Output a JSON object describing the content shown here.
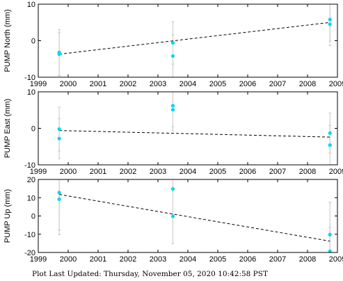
{
  "footer": "Plot Last Updated:   Thursday, November 05, 2020 10:42:58 PST",
  "colors": {
    "point": "#00d8ee",
    "errorbar": "#c8c8c8",
    "trend": "#000000",
    "frame": "#000000"
  },
  "chart_data": [
    {
      "type": "scatter",
      "ylabel": "PUMP North (mm)",
      "xlim": [
        1999,
        2009
      ],
      "ylim": [
        -10,
        10
      ],
      "xticks": [
        1999,
        2000,
        2001,
        2002,
        2003,
        2004,
        2005,
        2006,
        2007,
        2008,
        2009
      ],
      "yticks": [
        -10,
        0,
        10
      ],
      "grid": false,
      "points": [
        {
          "x": 1999.7,
          "y": -3.2,
          "err": 6.3
        },
        {
          "x": 1999.7,
          "y": -3.7,
          "err": 5.9
        },
        {
          "x": 2003.5,
          "y": -0.6,
          "err": 5.8
        },
        {
          "x": 2003.5,
          "y": -4.2,
          "err": 5.8
        },
        {
          "x": 2008.75,
          "y": 5.8,
          "err": 5.9
        },
        {
          "x": 2008.75,
          "y": 4.5,
          "err": 5.9
        }
      ],
      "trend": [
        [
          1999.7,
          -3.7
        ],
        [
          2008.75,
          5.0
        ]
      ]
    },
    {
      "type": "scatter",
      "ylabel": "PUMP East (mm)",
      "xlim": [
        1999,
        2009
      ],
      "ylim": [
        -10,
        10
      ],
      "xticks": [
        1999,
        2000,
        2001,
        2002,
        2003,
        2004,
        2005,
        2006,
        2007,
        2008,
        2009
      ],
      "yticks": [
        -10,
        0,
        10
      ],
      "grid": false,
      "points": [
        {
          "x": 1999.7,
          "y": -0.2,
          "err": 6.0
        },
        {
          "x": 1999.7,
          "y": -2.8,
          "err": 5.5
        },
        {
          "x": 2003.5,
          "y": 6.2,
          "err": 5.8
        },
        {
          "x": 2003.5,
          "y": 5.1,
          "err": 5.8
        },
        {
          "x": 2008.75,
          "y": -1.3,
          "err": 5.5
        },
        {
          "x": 2008.75,
          "y": -4.6,
          "err": 5.4
        }
      ],
      "trend": [
        [
          1999.7,
          -0.6
        ],
        [
          2008.75,
          -2.4
        ]
      ]
    },
    {
      "type": "scatter",
      "ylabel": "PUMP Up (mm)",
      "xlim": [
        1999,
        2009
      ],
      "ylim": [
        -20,
        20
      ],
      "xticks": [
        1999,
        2000,
        2001,
        2002,
        2003,
        2004,
        2005,
        2006,
        2007,
        2008,
        2009
      ],
      "yticks": [
        -20,
        -10,
        0,
        10,
        20
      ],
      "grid": false,
      "points": [
        {
          "x": 1999.7,
          "y": 12.8,
          "err": 20.5
        },
        {
          "x": 1999.7,
          "y": 9.2,
          "err": 19.5
        },
        {
          "x": 2003.5,
          "y": 14.8,
          "err": 15.0
        },
        {
          "x": 2003.5,
          "y": -0.2,
          "err": 15.0
        },
        {
          "x": 2008.75,
          "y": -10.2,
          "err": 17.8
        },
        {
          "x": 2008.75,
          "y": -19.3,
          "err": 13.0
        }
      ],
      "trend": [
        [
          1999.7,
          11.8
        ],
        [
          2008.75,
          -13.8
        ]
      ]
    }
  ]
}
